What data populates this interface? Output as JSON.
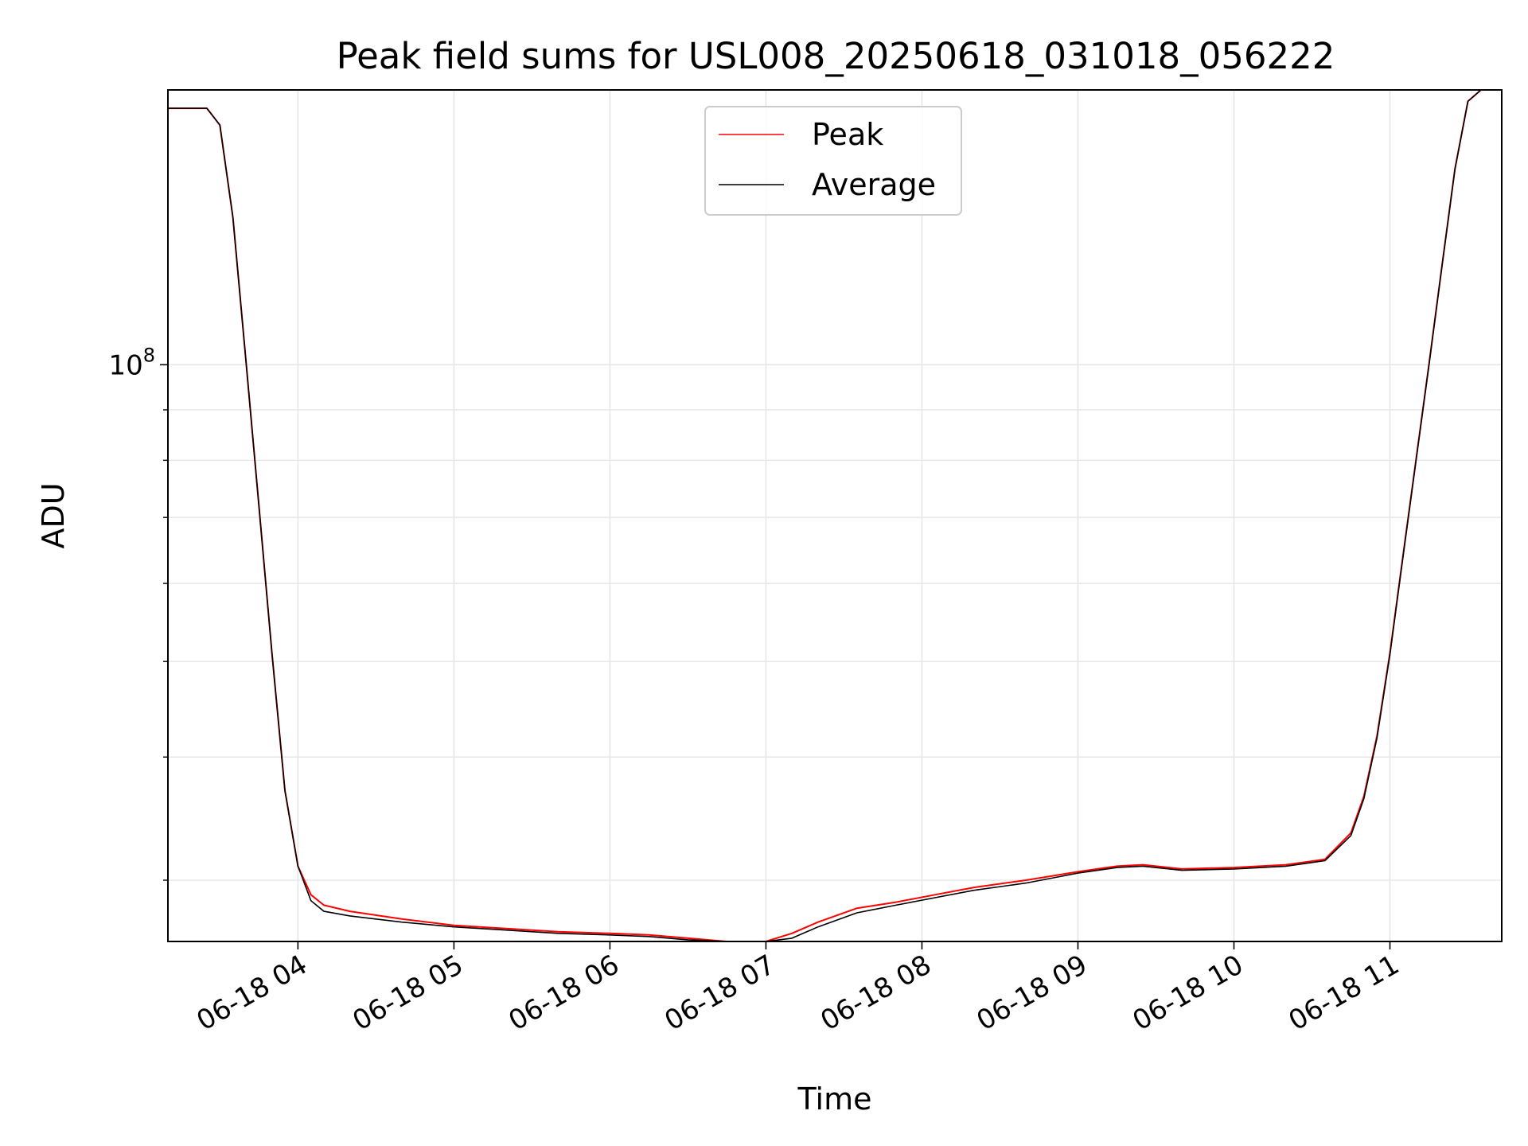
{
  "chart_data": {
    "type": "line",
    "title": "Peak field sums for USL008_20250618_031018_056222",
    "xlabel": "Time",
    "ylabel": "ADU",
    "yscale": "log",
    "grid": true,
    "legend_position": "top-center",
    "xlim": [
      "06-18 03:10",
      "06-18 11:43"
    ],
    "ylim": [
      26000000,
      190000000
    ],
    "x_ticks": [
      "06-18 04",
      "06-18 05",
      "06-18 06",
      "06-18 07",
      "06-18 08",
      "06-18 09",
      "06-18 10",
      "06-18 11"
    ],
    "y_ticks": [
      {
        "value": 100000000,
        "base": "10",
        "exp": "8"
      }
    ],
    "series": [
      {
        "name": "Peak",
        "color": "#ff0000",
        "x": [
          "06-18 03:10",
          "06-18 03:25",
          "06-18 03:30",
          "06-18 03:35",
          "06-18 03:40",
          "06-18 03:45",
          "06-18 03:50",
          "06-18 03:55",
          "06-18 04:00",
          "06-18 04:05",
          "06-18 04:10",
          "06-18 04:20",
          "06-18 04:40",
          "06-18 05:00",
          "06-18 05:20",
          "06-18 05:40",
          "06-18 06:00",
          "06-18 06:15",
          "06-18 06:30",
          "06-18 06:45",
          "06-18 07:00",
          "06-18 07:10",
          "06-18 07:20",
          "06-18 07:35",
          "06-18 07:50",
          "06-18 08:05",
          "06-18 08:20",
          "06-18 08:40",
          "06-18 09:00",
          "06-18 09:15",
          "06-18 09:25",
          "06-18 09:40",
          "06-18 10:00",
          "06-18 10:20",
          "06-18 10:35",
          "06-18 10:45",
          "06-18 10:50",
          "06-18 10:55",
          "06-18 11:00",
          "06-18 11:05",
          "06-18 11:10",
          "06-18 11:15",
          "06-18 11:20",
          "06-18 11:25",
          "06-18 11:30",
          "06-18 11:35",
          "06-18 11:43"
        ],
        "values": [
          182000000,
          182000000,
          175000000,
          141000000,
          101000000,
          72000000,
          51000000,
          37000000,
          31000000,
          29000000,
          28300000,
          27900000,
          27400000,
          27000000,
          26800000,
          26600000,
          26500000,
          26400000,
          26200000,
          26000000,
          25900000,
          26500000,
          27200000,
          28100000,
          28500000,
          29000000,
          29500000,
          30000000,
          30600000,
          31000000,
          31100000,
          30800000,
          30900000,
          31100000,
          31500000,
          33500000,
          36500000,
          42000000,
          51000000,
          64000000,
          80000000,
          100000000,
          126000000,
          158000000,
          185000000,
          190000000,
          190000000
        ]
      },
      {
        "name": "Average",
        "color": "#000000",
        "x": [
          "06-18 03:10",
          "06-18 03:25",
          "06-18 03:30",
          "06-18 03:35",
          "06-18 03:40",
          "06-18 03:45",
          "06-18 03:50",
          "06-18 03:55",
          "06-18 04:00",
          "06-18 04:05",
          "06-18 04:10",
          "06-18 04:20",
          "06-18 04:40",
          "06-18 05:00",
          "06-18 05:20",
          "06-18 05:40",
          "06-18 06:00",
          "06-18 06:15",
          "06-18 06:30",
          "06-18 06:45",
          "06-18 07:00",
          "06-18 07:10",
          "06-18 07:20",
          "06-18 07:35",
          "06-18 07:50",
          "06-18 08:05",
          "06-18 08:20",
          "06-18 08:40",
          "06-18 09:00",
          "06-18 09:15",
          "06-18 09:25",
          "06-18 09:40",
          "06-18 10:00",
          "06-18 10:20",
          "06-18 10:35",
          "06-18 10:45",
          "06-18 10:50",
          "06-18 10:55",
          "06-18 11:00",
          "06-18 11:05",
          "06-18 11:10",
          "06-18 11:15",
          "06-18 11:20",
          "06-18 11:25",
          "06-18 11:30",
          "06-18 11:35",
          "06-18 11:43"
        ],
        "values": [
          182000000,
          182000000,
          175000000,
          141000000,
          101000000,
          72000000,
          51000000,
          37000000,
          31000000,
          28600000,
          27900000,
          27600000,
          27200000,
          26900000,
          26700000,
          26500000,
          26400000,
          26300000,
          26100000,
          25900000,
          25800000,
          26200000,
          26900000,
          27800000,
          28300000,
          28800000,
          29300000,
          29800000,
          30500000,
          30900000,
          31000000,
          30700000,
          30800000,
          31000000,
          31400000,
          33300000,
          36300000,
          41800000,
          50800000,
          63800000,
          79800000,
          99800000,
          125800000,
          157800000,
          185000000,
          190000000,
          190000000
        ]
      }
    ]
  }
}
